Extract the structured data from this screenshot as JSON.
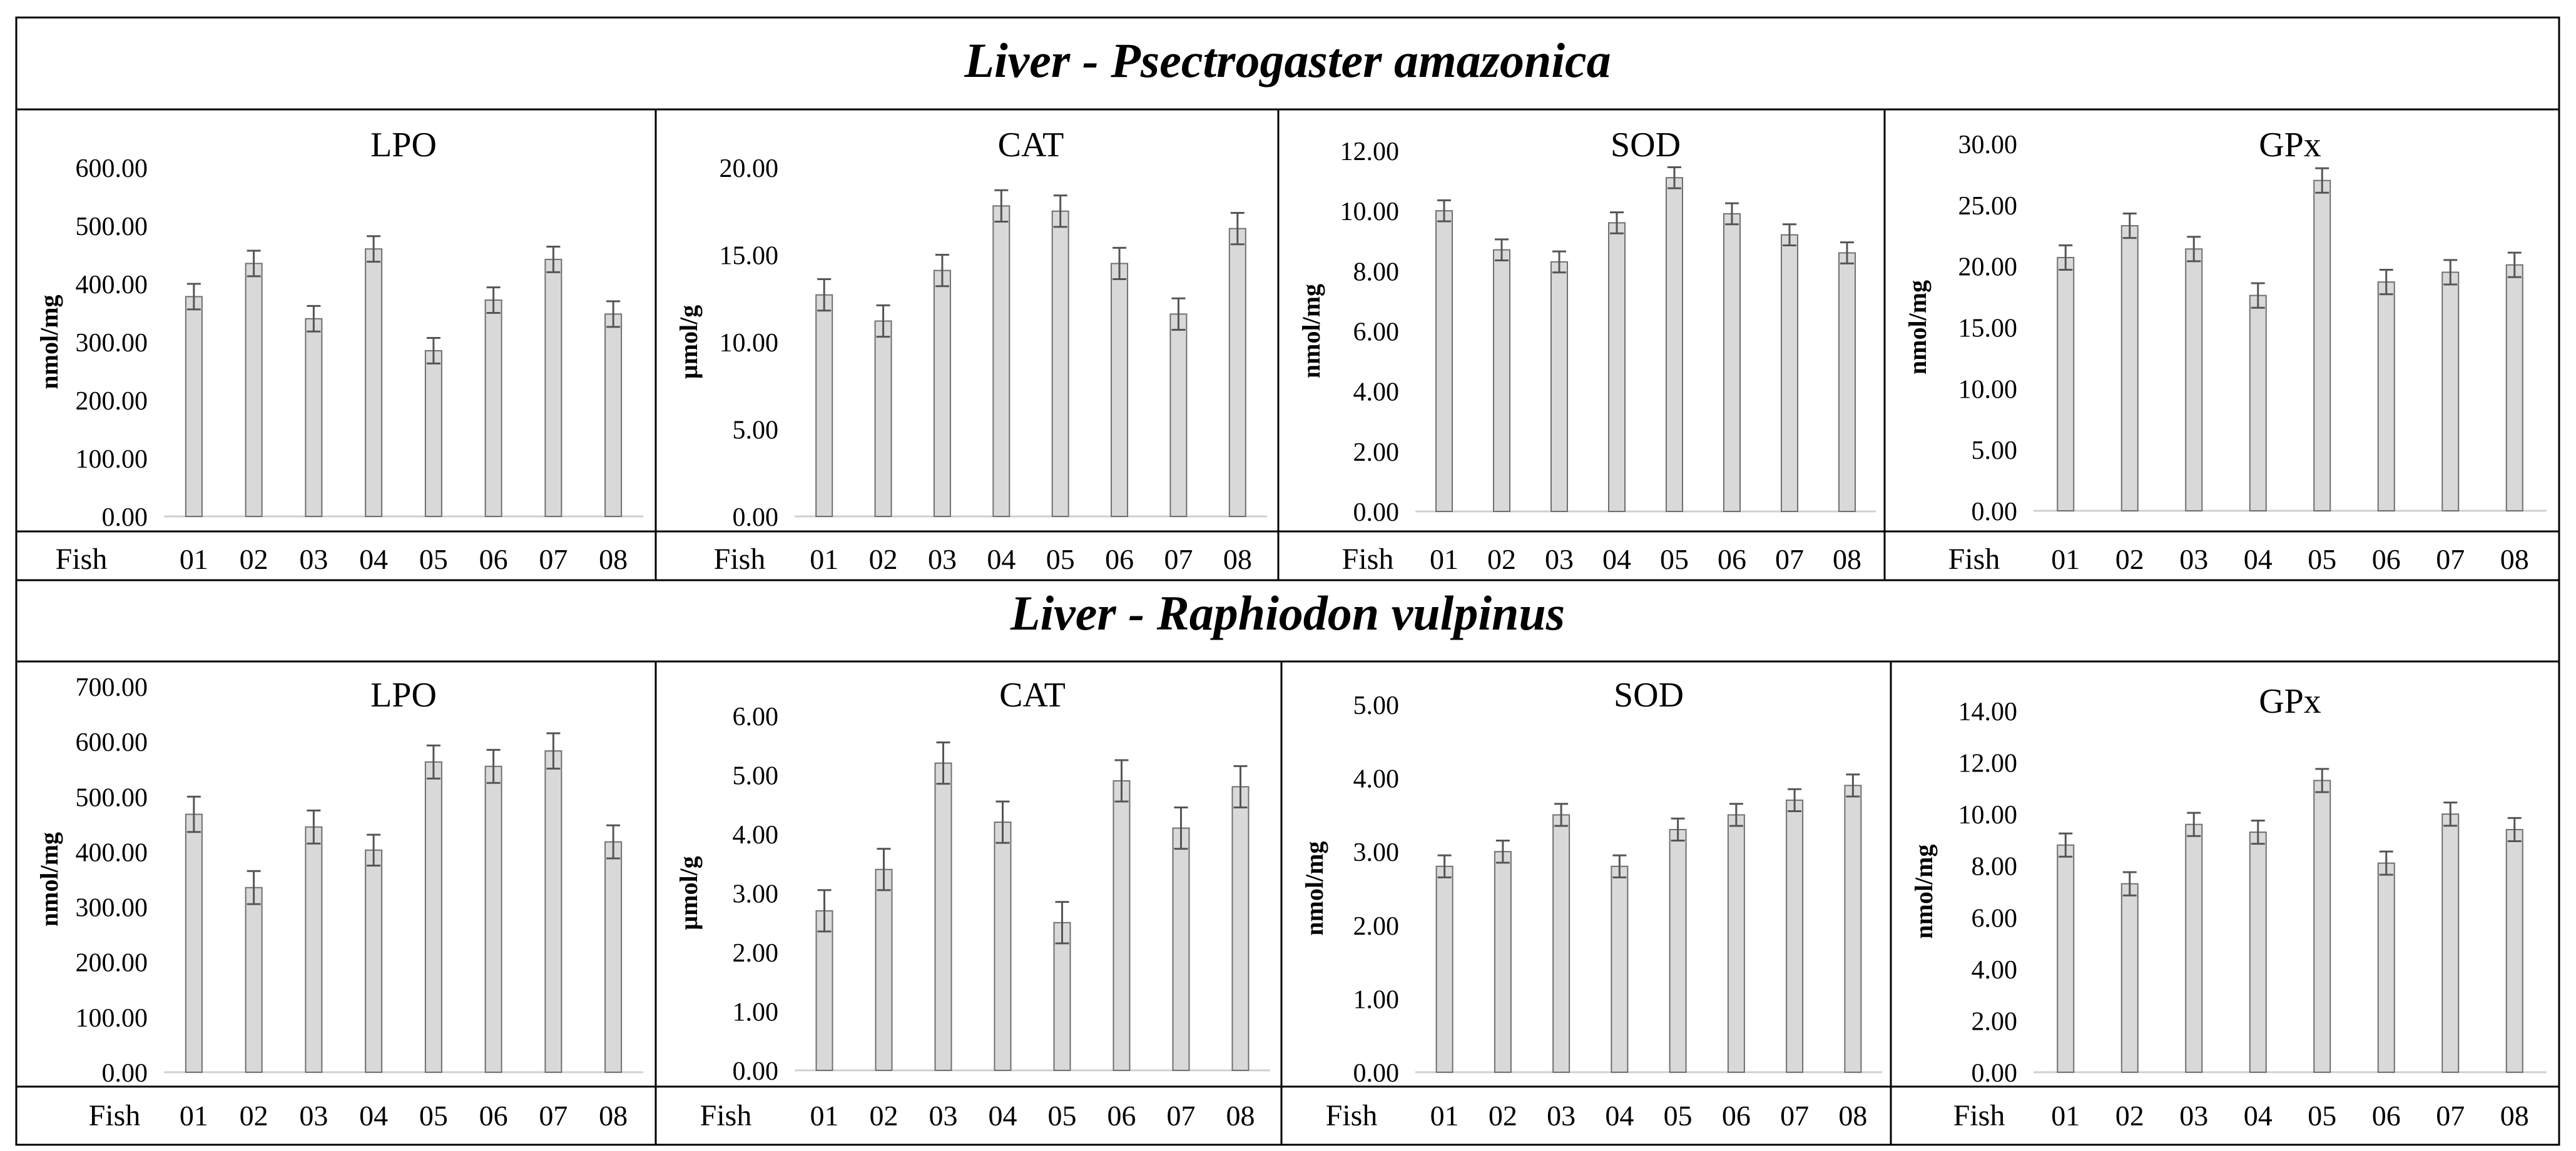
{
  "figure": {
    "sections": [
      {
        "title": "Liver - Psectrogaster amazonica"
      },
      {
        "title": "Liver - Raphiodon vulpinus"
      }
    ],
    "x_axis_label": "Fish",
    "colors": {
      "bar_fill": "#d9d9d9",
      "bar_stroke": "#6f6f6f",
      "frame": "#000000",
      "text": "#000000"
    }
  },
  "chart_data": [
    {
      "type": "bar",
      "section": "Liver - Psectrogaster amazonica",
      "title": "LPO",
      "xlabel": "Fish",
      "ylabel": "nmol/mg",
      "ylim": [
        0,
        600
      ],
      "yticks": [
        "0.00",
        "100.00",
        "200.00",
        "300.00",
        "400.00",
        "500.00",
        "600.00"
      ],
      "categories": [
        "01",
        "02",
        "03",
        "04",
        "05",
        "06",
        "07",
        "08"
      ],
      "values": [
        378,
        435,
        340,
        460,
        285,
        372,
        442,
        348
      ],
      "errors": [
        22,
        22,
        22,
        22,
        22,
        22,
        22,
        22
      ]
    },
    {
      "type": "bar",
      "section": "Liver - Psectrogaster amazonica",
      "title": "CAT",
      "xlabel": "Fish",
      "ylabel": "µmol/g",
      "ylim": [
        0,
        20
      ],
      "yticks": [
        "0.00",
        "5.00",
        "10.00",
        "15.00",
        "20.00"
      ],
      "categories": [
        "01",
        "02",
        "03",
        "04",
        "05",
        "06",
        "07",
        "08"
      ],
      "values": [
        12.7,
        11.2,
        14.1,
        17.8,
        17.5,
        14.5,
        11.6,
        16.5
      ],
      "errors": [
        0.9,
        0.9,
        0.9,
        0.9,
        0.9,
        0.9,
        0.9,
        0.9
      ]
    },
    {
      "type": "bar",
      "section": "Liver - Psectrogaster amazonica",
      "title": "SOD",
      "xlabel": "Fish",
      "ylabel": "nmol/mg",
      "ylim": [
        0,
        12
      ],
      "yticks": [
        "0.00",
        "2.00",
        "4.00",
        "6.00",
        "8.00",
        "10.00",
        "12.00"
      ],
      "categories": [
        "01",
        "02",
        "03",
        "04",
        "05",
        "06",
        "07",
        "08"
      ],
      "values": [
        10.0,
        8.7,
        8.3,
        9.6,
        11.1,
        9.9,
        9.2,
        8.6
      ],
      "errors": [
        0.35,
        0.35,
        0.35,
        0.35,
        0.35,
        0.35,
        0.35,
        0.35
      ]
    },
    {
      "type": "bar",
      "section": "Liver - Psectrogaster amazonica",
      "title": "GPx",
      "xlabel": "Fish",
      "ylabel": "nmol/mg",
      "ylim": [
        0,
        30
      ],
      "yticks": [
        "0.00",
        "5.00",
        "10.00",
        "15.00",
        "20.00",
        "25.00",
        "30.00"
      ],
      "categories": [
        "01",
        "02",
        "03",
        "04",
        "05",
        "06",
        "07",
        "08"
      ],
      "values": [
        20.7,
        23.3,
        21.4,
        17.6,
        27.0,
        18.7,
        19.5,
        20.1
      ],
      "errors": [
        1.0,
        1.0,
        1.0,
        1.0,
        1.0,
        1.0,
        1.0,
        1.0
      ]
    },
    {
      "type": "bar",
      "section": "Liver - Raphiodon vulpinus",
      "title": "LPO",
      "xlabel": "Fish",
      "ylabel": "nmol/mg",
      "ylim": [
        0,
        700
      ],
      "yticks": [
        "0.00",
        "100.00",
        "200.00",
        "300.00",
        "400.00",
        "500.00",
        "600.00",
        "700.00"
      ],
      "categories": [
        "01",
        "02",
        "03",
        "04",
        "05",
        "06",
        "07",
        "08"
      ],
      "values": [
        468,
        335,
        445,
        403,
        563,
        555,
        583,
        418
      ],
      "errors": [
        32,
        30,
        30,
        28,
        30,
        30,
        32,
        30
      ]
    },
    {
      "type": "bar",
      "section": "Liver - Raphiodon vulpinus",
      "title": "CAT",
      "xlabel": "Fish",
      "ylabel": "µmol/g",
      "ylim": [
        0,
        6
      ],
      "yticks": [
        "0.00",
        "1.00",
        "2.00",
        "3.00",
        "4.00",
        "5.00",
        "6.00"
      ],
      "categories": [
        "01",
        "02",
        "03",
        "04",
        "05",
        "06",
        "07",
        "08"
      ],
      "values": [
        2.7,
        3.4,
        5.2,
        4.2,
        2.5,
        4.9,
        4.1,
        4.8
      ],
      "errors": [
        0.35,
        0.35,
        0.35,
        0.35,
        0.35,
        0.35,
        0.35,
        0.35
      ]
    },
    {
      "type": "bar",
      "section": "Liver - Raphiodon vulpinus",
      "title": "SOD",
      "xlabel": "Fish",
      "ylabel": "nmol/mg",
      "ylim": [
        0,
        5
      ],
      "yticks": [
        "0.00",
        "1.00",
        "2.00",
        "3.00",
        "4.00",
        "5.00"
      ],
      "categories": [
        "01",
        "02",
        "03",
        "04",
        "05",
        "06",
        "07",
        "08"
      ],
      "values": [
        2.8,
        3.0,
        3.5,
        2.8,
        3.3,
        3.5,
        3.7,
        3.9
      ],
      "errors": [
        0.15,
        0.15,
        0.15,
        0.15,
        0.15,
        0.15,
        0.15,
        0.15
      ]
    },
    {
      "type": "bar",
      "section": "Liver - Raphiodon vulpinus",
      "title": "GPx",
      "xlabel": "Fish",
      "ylabel": "nmol/mg",
      "ylim": [
        0,
        14
      ],
      "yticks": [
        "0.00",
        "2.00",
        "4.00",
        "6.00",
        "8.00",
        "10.00",
        "12.00",
        "14.00"
      ],
      "categories": [
        "01",
        "02",
        "03",
        "04",
        "05",
        "06",
        "07",
        "08"
      ],
      "values": [
        8.8,
        7.3,
        9.6,
        9.3,
        11.3,
        8.1,
        10.0,
        9.4
      ],
      "errors": [
        0.45,
        0.45,
        0.45,
        0.45,
        0.45,
        0.45,
        0.45,
        0.45
      ]
    }
  ]
}
